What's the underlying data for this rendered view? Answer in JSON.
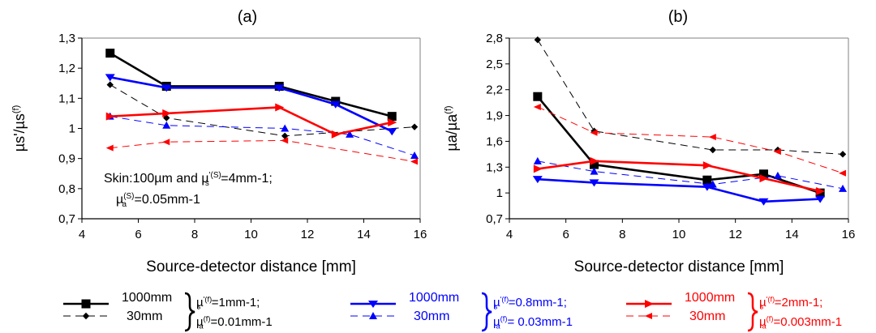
{
  "chart_data": [
    {
      "type": "line",
      "panel_label": "(a)",
      "xlabel": "Source-detector distance [mm]",
      "ylabel_main": "µs'/µs",
      "ylabel_sup": "(f)",
      "xlim": [
        4,
        16
      ],
      "ylim": [
        0.7,
        1.3
      ],
      "xticks": [
        4,
        6,
        8,
        10,
        12,
        14,
        16
      ],
      "xtick_labels": [
        "4",
        "6",
        "8",
        "10",
        "12",
        "14",
        "16"
      ],
      "yticks": [
        0.7,
        0.8,
        0.9,
        1.0,
        1.1,
        1.2,
        1.3
      ],
      "ytick_labels": [
        "0,7",
        "0,8",
        "0,9",
        "1",
        "1,1",
        "1,2",
        "1,3"
      ],
      "annotation_lines": [
        {
          "pre": "Skin:100µm and  µ",
          "sup": "'(S)",
          "sub": "s",
          "post": "=4mm-1;"
        },
        {
          "pre": "µ",
          "sup": "(S)",
          "sub": "a",
          "post": "=0.05mm-1"
        }
      ],
      "series": [
        {
          "group": 0,
          "style": "solid",
          "marker": "square",
          "x": [
            5,
            7,
            11,
            13,
            15
          ],
          "y": [
            1.25,
            1.14,
            1.14,
            1.09,
            1.04
          ]
        },
        {
          "group": 0,
          "style": "dashed",
          "marker": "diamond",
          "x": [
            5,
            7,
            11.2,
            15.8
          ],
          "y": [
            1.145,
            1.035,
            0.975,
            1.005
          ]
        },
        {
          "group": 1,
          "style": "solid",
          "marker": "tri-down",
          "x": [
            5,
            7,
            11,
            13,
            15
          ],
          "y": [
            1.17,
            1.135,
            1.135,
            1.08,
            0.99
          ]
        },
        {
          "group": 1,
          "style": "dashed",
          "marker": "tri-up",
          "x": [
            5,
            7,
            11.2,
            13.5,
            15.8
          ],
          "y": [
            1.04,
            1.01,
            1.0,
            0.98,
            0.91
          ]
        },
        {
          "group": 2,
          "style": "solid",
          "marker": "tri-right",
          "x": [
            5,
            7,
            11,
            13,
            15
          ],
          "y": [
            1.04,
            1.05,
            1.07,
            0.98,
            1.02
          ]
        },
        {
          "group": 2,
          "style": "dashed",
          "marker": "tri-left",
          "x": [
            5,
            7,
            11.2,
            15.8
          ],
          "y": [
            0.935,
            0.955,
            0.96,
            0.89
          ]
        }
      ]
    },
    {
      "type": "line",
      "panel_label": "(b)",
      "xlabel": "Source-detector distance [mm]",
      "ylabel_main": "µa/µa",
      "ylabel_sup": "(f)",
      "xlim": [
        4,
        16
      ],
      "ylim": [
        0.7,
        2.8
      ],
      "xticks": [
        4,
        6,
        8,
        10,
        12,
        14,
        16
      ],
      "xtick_labels": [
        "4",
        "6",
        "8",
        "10",
        "12",
        "14",
        "16"
      ],
      "yticks": [
        0.7,
        1.0,
        1.3,
        1.6,
        1.9,
        2.2,
        2.5,
        2.8
      ],
      "ytick_labels": [
        "0,7",
        "1",
        "1,3",
        "1,6",
        "1,9",
        "2,2",
        "2,5",
        "2,8"
      ],
      "series": [
        {
          "group": 0,
          "style": "solid",
          "marker": "square",
          "x": [
            5,
            7,
            11,
            13,
            15
          ],
          "y": [
            2.12,
            1.33,
            1.15,
            1.22,
            1.0
          ]
        },
        {
          "group": 0,
          "style": "dashed",
          "marker": "diamond",
          "x": [
            5,
            7,
            11.2,
            13.5,
            15.8
          ],
          "y": [
            2.78,
            1.72,
            1.5,
            1.5,
            1.45
          ]
        },
        {
          "group": 1,
          "style": "solid",
          "marker": "tri-down",
          "x": [
            5,
            7,
            11,
            13,
            15
          ],
          "y": [
            1.16,
            1.12,
            1.07,
            0.9,
            0.93
          ]
        },
        {
          "group": 1,
          "style": "dashed",
          "marker": "tri-up",
          "x": [
            5,
            7,
            11.2,
            13.5,
            15.8
          ],
          "y": [
            1.37,
            1.25,
            1.1,
            1.2,
            1.05
          ]
        },
        {
          "group": 2,
          "style": "solid",
          "marker": "tri-right",
          "x": [
            5,
            7,
            11,
            13,
            15
          ],
          "y": [
            1.28,
            1.37,
            1.32,
            1.17,
            1.02
          ]
        },
        {
          "group": 2,
          "style": "dashed",
          "marker": "tri-left",
          "x": [
            5,
            7,
            11.2,
            13.5,
            15.8
          ],
          "y": [
            2.0,
            1.7,
            1.65,
            1.48,
            1.23
          ]
        }
      ]
    }
  ],
  "colors": {
    "group0": "#000000",
    "group1": "#0000ff",
    "group2": "#ff0000",
    "axis": "#000000",
    "frame": "#808080"
  },
  "legend": {
    "groups": [
      {
        "color_key": "group0",
        "solid_label": "1000mm",
        "dashed_label": "30mm",
        "line1": {
          "pre": "µ",
          "sup": "'(f)",
          "sub": "s",
          "post": "=1mm-1;"
        },
        "line2": {
          "pre": "µ",
          "sup": "(f)",
          "sub": "a",
          "post": "=0.01mm-1"
        }
      },
      {
        "color_key": "group1",
        "solid_label": "1000mm",
        "dashed_label": "30mm",
        "line1": {
          "pre": "µ",
          "sup": "'(f)",
          "sub": "s",
          "post": "=0.8mm-1;"
        },
        "line2": {
          "pre": "µ",
          "sup": "(f)",
          "sub": "a",
          "post": "= 0.03mm-1"
        }
      },
      {
        "color_key": "group2",
        "solid_label": "1000mm",
        "dashed_label": "30mm",
        "line1": {
          "pre": "µ",
          "sup": "'(f)",
          "sub": "s",
          "post": "=2mm-1;"
        },
        "line2": {
          "pre": "µ",
          "sup": "(f)",
          "sub": "a",
          "post": "=0.003mm-1"
        }
      }
    ]
  }
}
